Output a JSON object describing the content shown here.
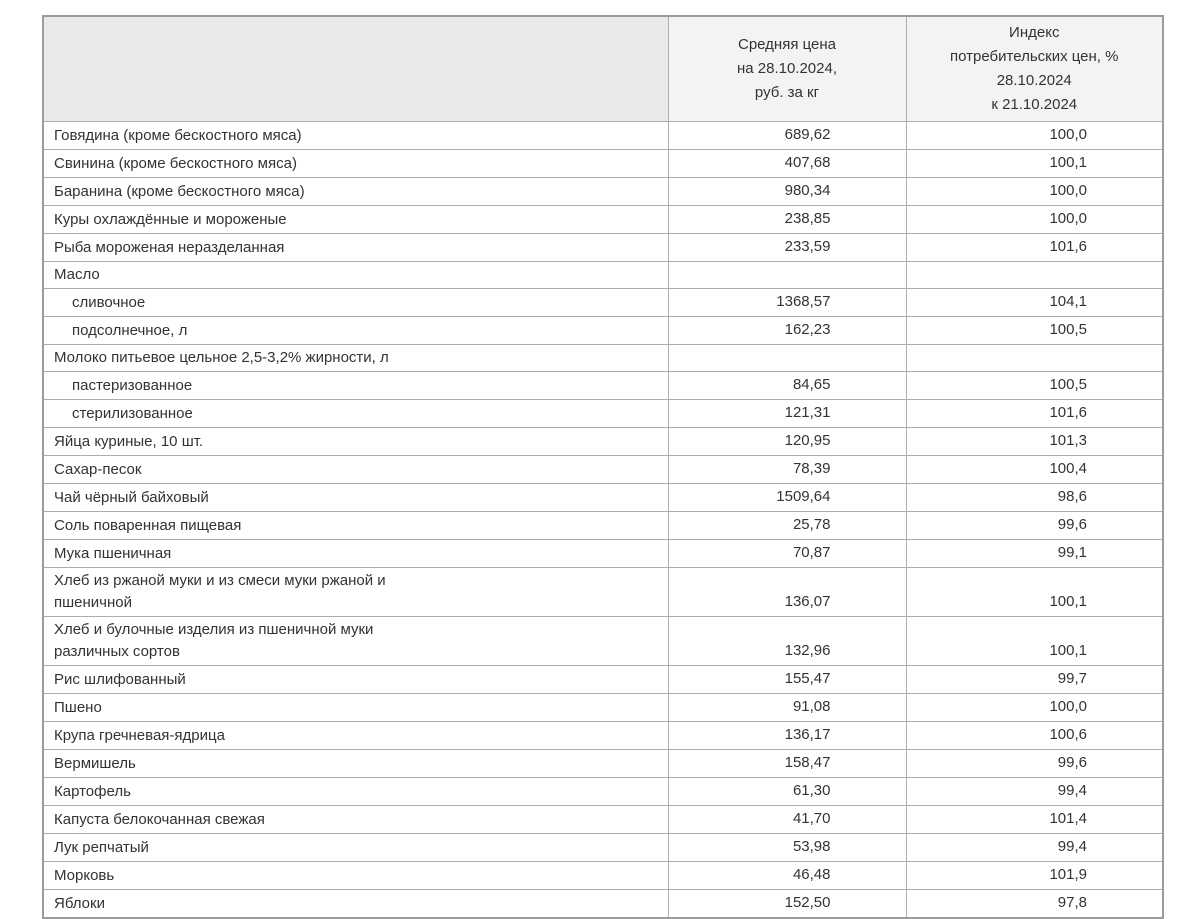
{
  "table": {
    "columns": [
      {
        "label": ""
      },
      {
        "label": "Средняя цена\nна 28.10.2024,\nруб. за кг"
      },
      {
        "label": "Индекс\nпотребительских цен, %\n28.10.2024\nк 21.10.2024"
      }
    ],
    "rows": [
      {
        "name": "Говядина (кроме бескостного мяса)",
        "price": "689,62",
        "index": "100,0"
      },
      {
        "name": "Свинина (кроме бескостного мяса)",
        "price": "407,68",
        "index": "100,1"
      },
      {
        "name": "Баранина (кроме бескостного мяса)",
        "price": "980,34",
        "index": "100,0"
      },
      {
        "name": "Куры охлаждённые и мороженые",
        "price": "238,85",
        "index": "100,0"
      },
      {
        "name": "Рыба мороженая неразделанная",
        "price": "233,59",
        "index": "101,6"
      },
      {
        "name": "Масло",
        "price": "",
        "index": ""
      },
      {
        "name": "сливочное",
        "price": "1368,57",
        "index": "104,1"
      },
      {
        "name": "подсолнечное, л",
        "price": "162,23",
        "index": "100,5"
      },
      {
        "name": "Молоко питьевое цельное 2,5-3,2% жирности, л",
        "price": "",
        "index": ""
      },
      {
        "name": "пастеризованное",
        "price": "84,65",
        "index": "100,5"
      },
      {
        "name": "стерилизованное",
        "price": "121,31",
        "index": "101,6"
      },
      {
        "name": "Яйца куриные, 10 шт.",
        "price": "120,95",
        "index": "101,3"
      },
      {
        "name": "Сахар-песок",
        "price": "78,39",
        "index": "100,4"
      },
      {
        "name": "Чай чёрный байховый",
        "price": "1509,64",
        "index": "98,6"
      },
      {
        "name": "Соль поваренная пищевая",
        "price": "25,78",
        "index": "99,6"
      },
      {
        "name": "Мука пшеничная",
        "price": "70,87",
        "index": "99,1"
      },
      {
        "name": "Хлеб из ржаной муки и из смеси муки ржаной и\nпшеничной",
        "price": "136,07",
        "index": "100,1"
      },
      {
        "name": "Хлеб и булочные изделия из пшеничной муки\nразличных сортов",
        "price": "132,96",
        "index": "100,1"
      },
      {
        "name": "Рис шлифованный",
        "price": "155,47",
        "index": "99,7"
      },
      {
        "name": "Пшено",
        "price": "91,08",
        "index": "100,0"
      },
      {
        "name": "Крупа гречневая-ядрица",
        "price": "136,17",
        "index": "100,6"
      },
      {
        "name": "Вермишель",
        "price": "158,47",
        "index": "99,6"
      },
      {
        "name": "Картофель",
        "price": "61,30",
        "index": "99,4"
      },
      {
        "name": "Капуста белокочанная свежая",
        "price": "41,70",
        "index": "101,4"
      },
      {
        "name": "Лук репчатый",
        "price": "53,98",
        "index": "99,4"
      },
      {
        "name": "Морковь",
        "price": "46,48",
        "index": "101,9"
      },
      {
        "name": "Яблоки",
        "price": "152,50",
        "index": "97,8"
      }
    ]
  }
}
